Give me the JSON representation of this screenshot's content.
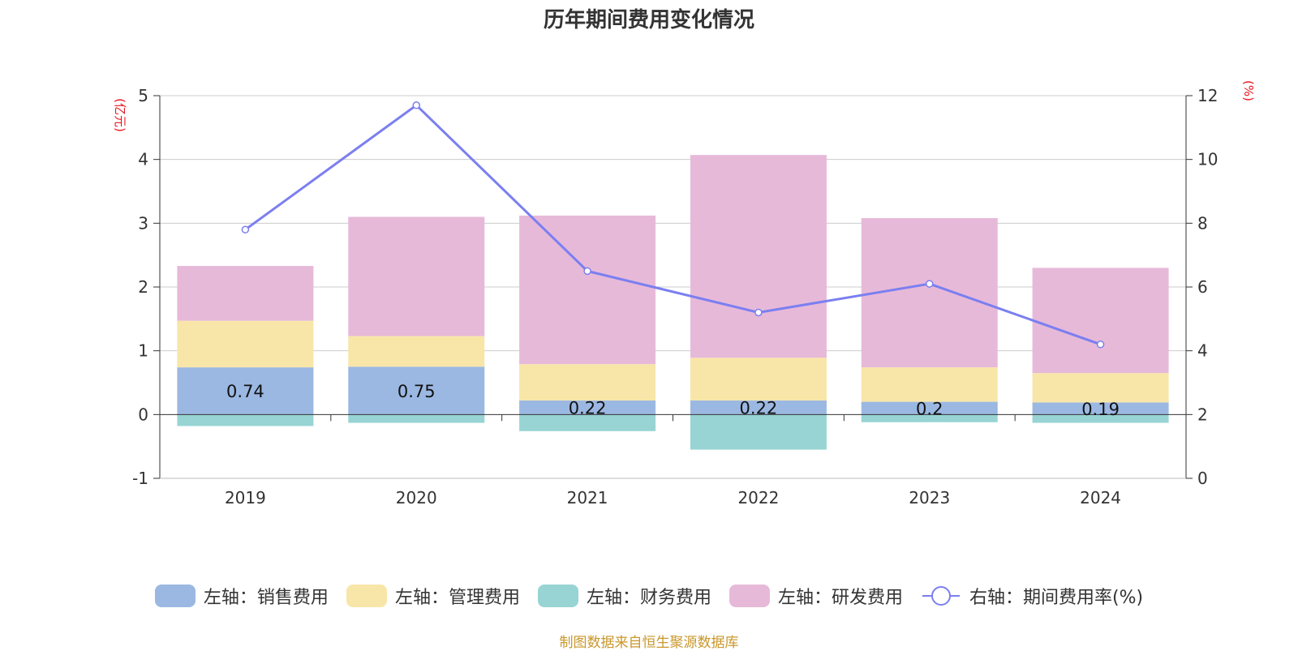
{
  "chart_data": {
    "type": "bar",
    "title": "历年期间费用变化情况",
    "categories": [
      "2019",
      "2020",
      "2021",
      "2022",
      "2023",
      "2024"
    ],
    "y_left": {
      "unit": "(亿元)",
      "ylim": [
        -1,
        5
      ],
      "ticks": [
        "-1",
        "0",
        "1",
        "2",
        "3",
        "4",
        "5"
      ]
    },
    "y_right": {
      "unit": "(%)",
      "ylim": [
        0,
        12
      ],
      "ticks": [
        "0",
        "2",
        "4",
        "6",
        "8",
        "10",
        "12"
      ]
    },
    "grid": true,
    "stacked": true,
    "series": [
      {
        "name": "左轴：销售费用",
        "axis": "left",
        "color": "#9bb8e2",
        "values": [
          0.74,
          0.75,
          0.22,
          0.22,
          0.2,
          0.19
        ],
        "labels": [
          "0.74",
          "0.75",
          "0.22",
          "0.22",
          "0.2",
          "0.19"
        ]
      },
      {
        "name": "左轴：管理费用",
        "axis": "left",
        "color": "#f8e6a8",
        "values": [
          0.73,
          0.48,
          0.57,
          0.67,
          0.54,
          0.46
        ]
      },
      {
        "name": "左轴：财务费用",
        "axis": "left",
        "color": "#98d4d4",
        "values": [
          -0.18,
          -0.13,
          -0.26,
          -0.55,
          -0.12,
          -0.13
        ]
      },
      {
        "name": "左轴：研发费用",
        "axis": "left",
        "color": "#e7b9d9",
        "values": [
          0.86,
          1.87,
          2.33,
          3.18,
          2.34,
          1.65
        ]
      },
      {
        "name": "右轴：期间费用率(%)",
        "axis": "right",
        "type": "line",
        "color": "#7b7ff0",
        "values": [
          7.8,
          11.7,
          6.5,
          5.2,
          6.1,
          4.2
        ]
      }
    ],
    "legend_position": "bottom"
  },
  "source": "制图数据来自恒生聚源数据库"
}
